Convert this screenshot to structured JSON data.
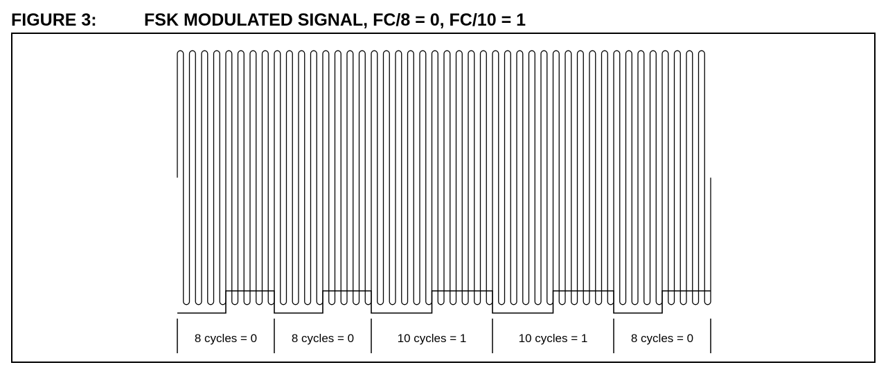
{
  "figure": {
    "label": "FIGURE 3:",
    "title": "FSK MODULATED SIGNAL, FC/8 = 0, FC/10 = 1"
  },
  "signal": {
    "segments": [
      {
        "label": "8 cycles = 0",
        "cycles": 8,
        "bit": 0
      },
      {
        "label": "8 cycles = 0",
        "cycles": 8,
        "bit": 0
      },
      {
        "label": "10 cycles = 1",
        "cycles": 10,
        "bit": 1
      },
      {
        "label": "10 cycles = 1",
        "cycles": 10,
        "bit": 1
      },
      {
        "label": "8 cycles = 0",
        "cycles": 8,
        "bit": 0
      }
    ]
  },
  "colors": {
    "line": "#000000",
    "background": "#ffffff"
  }
}
